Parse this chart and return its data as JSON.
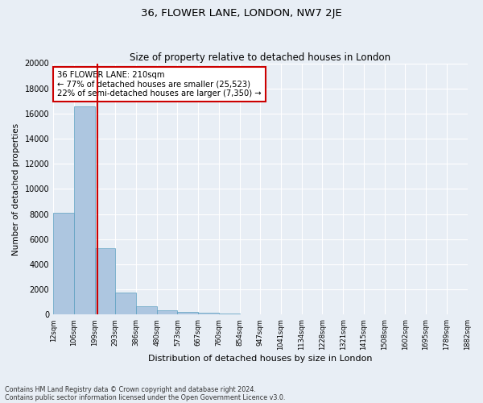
{
  "title": "36, FLOWER LANE, LONDON, NW7 2JE",
  "subtitle": "Size of property relative to detached houses in London",
  "xlabel": "Distribution of detached houses by size in London",
  "ylabel": "Number of detached properties",
  "bin_labels": [
    "12sqm",
    "106sqm",
    "199sqm",
    "293sqm",
    "386sqm",
    "480sqm",
    "573sqm",
    "667sqm",
    "760sqm",
    "854sqm",
    "947sqm",
    "1041sqm",
    "1134sqm",
    "1228sqm",
    "1321sqm",
    "1415sqm",
    "1508sqm",
    "1602sqm",
    "1695sqm",
    "1789sqm",
    "1882sqm"
  ],
  "counts": [
    8100,
    16600,
    5300,
    1750,
    700,
    380,
    220,
    150,
    80,
    50,
    30,
    20,
    12,
    8,
    5,
    3,
    2,
    1,
    1,
    1
  ],
  "bar_color": "#adc6e0",
  "bar_edge_color": "#5a9fc0",
  "property_bin": 2.12,
  "vline_color": "#cc0000",
  "annotation_text": "36 FLOWER LANE: 210sqm\n← 77% of detached houses are smaller (25,523)\n22% of semi-detached houses are larger (7,350) →",
  "annotation_box_color": "#ffffff",
  "annotation_box_edge_color": "#cc0000",
  "ylim": [
    0,
    20000
  ],
  "yticks": [
    0,
    2000,
    4000,
    6000,
    8000,
    10000,
    12000,
    14000,
    16000,
    18000,
    20000
  ],
  "footnote1": "Contains HM Land Registry data © Crown copyright and database right 2024.",
  "footnote2": "Contains public sector information licensed under the Open Government Licence v3.0.",
  "bg_color": "#e8eef5",
  "plot_bg_color": "#e8eef5"
}
